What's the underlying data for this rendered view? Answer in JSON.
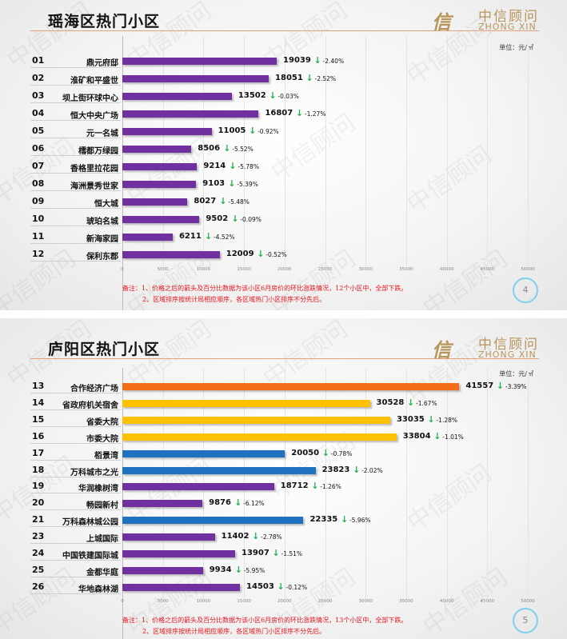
{
  "logo": {
    "mark": "信",
    "cn": "中信顾问",
    "en": "ZHONG XIN"
  },
  "watermark": "中信顾问",
  "unit": "单位：元/㎡",
  "colors": {
    "purple": "#7030a0",
    "orange": "#f46b18",
    "yellow": "#ffc000",
    "blue": "#1f72c0",
    "arrow": "#22b24c",
    "note": "#e8141c"
  },
  "chart_data": [
    {
      "type": "bar",
      "orientation": "horizontal",
      "title": "瑶海区热门小区",
      "xlim": [
        0,
        50000
      ],
      "xticks": [
        0,
        5000,
        10000,
        15000,
        20000,
        25000,
        30000,
        35000,
        40000,
        45000,
        50000
      ],
      "rows": [
        {
          "rank": "01",
          "name": "鼎元府邸",
          "value": 19039,
          "change": "-2.40%",
          "color": "purple"
        },
        {
          "rank": "02",
          "name": "淮矿和平盛世",
          "value": 18051,
          "change": "-2.52%",
          "color": "purple"
        },
        {
          "rank": "03",
          "name": "坝上街环球中心",
          "value": 13502,
          "change": "-0.03%",
          "color": "purple"
        },
        {
          "rank": "04",
          "name": "恒大中央广场",
          "value": 16807,
          "change": "-1.27%",
          "color": "purple"
        },
        {
          "rank": "05",
          "name": "元一名城",
          "value": 11005,
          "change": "-0.92%",
          "color": "purple"
        },
        {
          "rank": "06",
          "name": "樰都万绿园",
          "value": 8506,
          "change": "-5.52%",
          "color": "purple"
        },
        {
          "rank": "07",
          "name": "香格里拉花园",
          "value": 9214,
          "change": "-5.78%",
          "color": "purple"
        },
        {
          "rank": "08",
          "name": "海洲景秀世家",
          "value": 9103,
          "change": "-5.39%",
          "color": "purple"
        },
        {
          "rank": "09",
          "name": "恒大城",
          "value": 8027,
          "change": "-5.48%",
          "color": "purple"
        },
        {
          "rank": "10",
          "name": "琥珀名城",
          "value": 9502,
          "change": "-0.09%",
          "color": "purple"
        },
        {
          "rank": "11",
          "name": "新海家园",
          "value": 6211,
          "change": "-4.52%",
          "color": "purple"
        },
        {
          "rank": "12",
          "name": "保利东郡",
          "value": 12009,
          "change": "-0.52%",
          "color": "purple"
        }
      ],
      "notes": [
        "备注：1、价格之后的箭头及百分比数据为该小区6月房价的环比涨跌情况，12个小区中，全部下跌。",
        "2、区域排序按统计局相应顺序，各区域热门小区排序不分先后。"
      ],
      "page": "4"
    },
    {
      "type": "bar",
      "orientation": "horizontal",
      "title": "庐阳区热门小区",
      "xlim": [
        0,
        50000
      ],
      "xticks": [
        0,
        5000,
        10000,
        15000,
        20000,
        25000,
        30000,
        35000,
        40000,
        45000,
        50000
      ],
      "rows": [
        {
          "rank": "13",
          "name": "合作经济广场",
          "value": 41557,
          "change": "-3.39%",
          "color": "orange"
        },
        {
          "rank": "14",
          "name": "省政府机关宿舍",
          "value": 30528,
          "change": "-1.67%",
          "color": "yellow"
        },
        {
          "rank": "15",
          "name": "省委大院",
          "value": 33035,
          "change": "-1.28%",
          "color": "yellow"
        },
        {
          "rank": "16",
          "name": "市委大院",
          "value": 33804,
          "change": "-1.01%",
          "color": "yellow"
        },
        {
          "rank": "17",
          "name": "栢景湾",
          "value": 20050,
          "change": "-0.78%",
          "color": "blue"
        },
        {
          "rank": "18",
          "name": "万科城市之光",
          "value": 23823,
          "change": "-2.02%",
          "color": "blue"
        },
        {
          "rank": "19",
          "name": "华润橡树湾",
          "value": 18712,
          "change": "-1.26%",
          "color": "purple"
        },
        {
          "rank": "20",
          "name": "畅园新村",
          "value": 9876,
          "change": "-6.12%",
          "color": "purple"
        },
        {
          "rank": "21",
          "name": "万科森林城公园",
          "value": 22335,
          "change": "-5.96%",
          "color": "blue"
        },
        {
          "rank": "23",
          "name": "上城国际",
          "value": 11402,
          "change": "-2.78%",
          "color": "purple"
        },
        {
          "rank": "24",
          "name": "中国铁建国际城",
          "value": 13907,
          "change": "-1.51%",
          "color": "purple"
        },
        {
          "rank": "25",
          "name": "金都华庭",
          "value": 9934,
          "change": "-5.95%",
          "color": "purple"
        },
        {
          "rank": "26",
          "name": "华地森林湖",
          "value": 14503,
          "change": "-0.12%",
          "color": "purple"
        }
      ],
      "notes": [
        "备注：1、价格之后的箭头及百分比数据为该小区6月房价的环比涨跌情况，13个小区中，全部下跌。",
        "2、区域排序按统计局相应顺序，各区域热门小区排序不分先后。"
      ],
      "page": "5"
    }
  ]
}
